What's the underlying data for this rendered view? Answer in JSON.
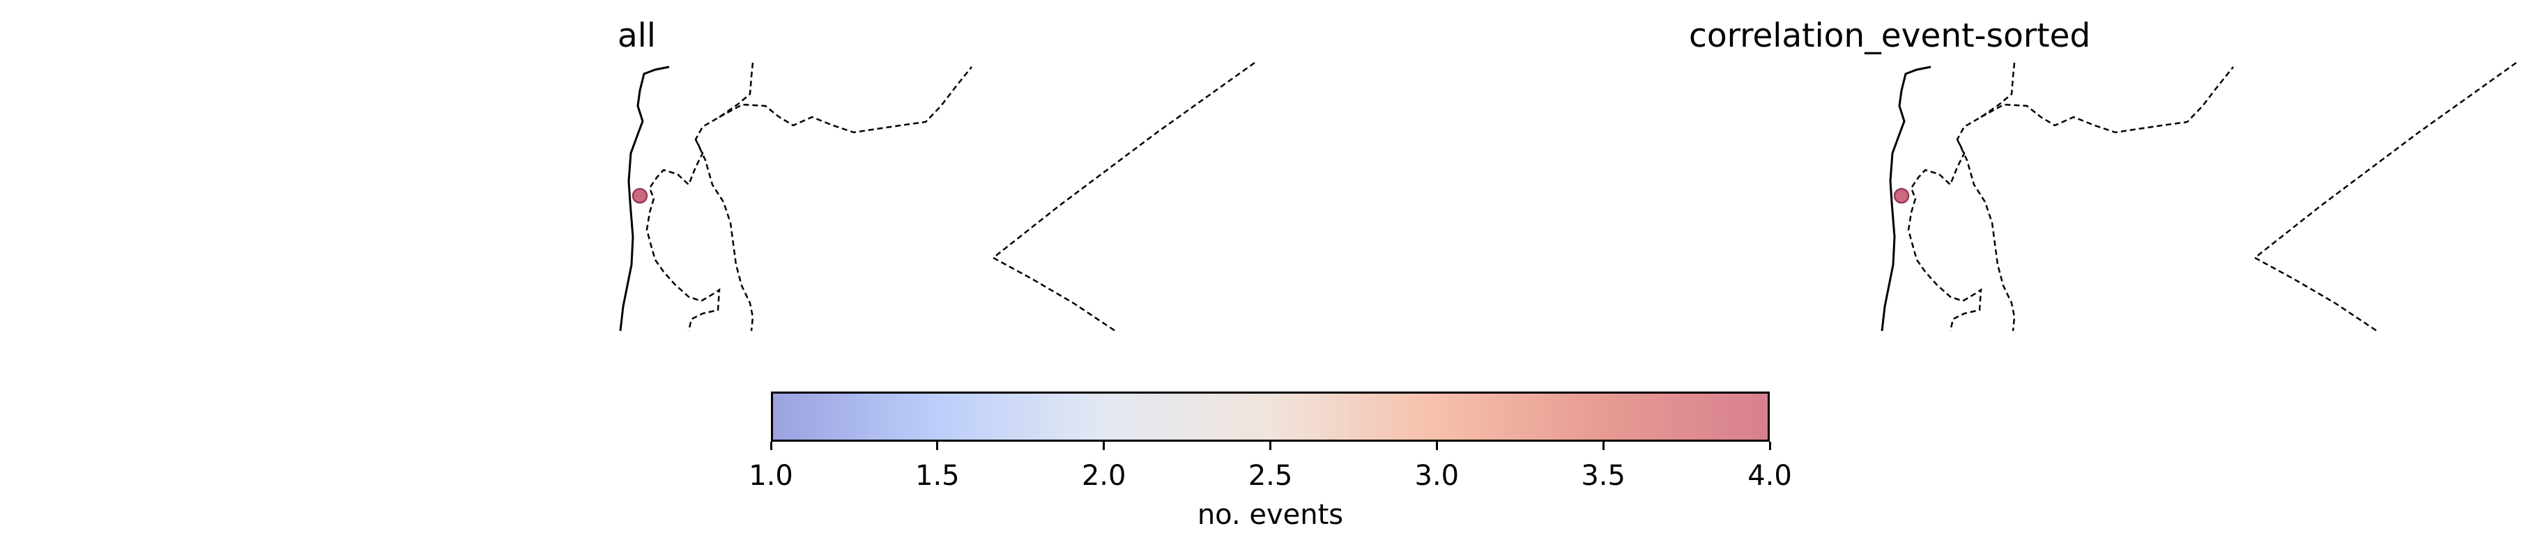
{
  "panels": [
    {
      "title": "all"
    },
    {
      "title": "correlation_event-sorted"
    }
  ],
  "legend": {
    "label": "no. events",
    "min": 1.0,
    "max": 4.0,
    "ticks": [
      "1.0",
      "1.5",
      "2.0",
      "2.5",
      "3.0",
      "3.5",
      "4.0"
    ],
    "colormap": "coolwarm",
    "gradient_colors": [
      "#9aa2df",
      "#bccefa",
      "#e3e8f2",
      "#f0e4dc",
      "#f6c0ab",
      "#e79b93",
      "#d8808e"
    ]
  },
  "colors": {
    "event_marker": "#c65a72",
    "event_marker_edge": "#8b2a40",
    "coastline": "#000000",
    "border": "#000000"
  },
  "chart_data": {
    "type": "scatter",
    "series": [
      {
        "values": [
          1
        ],
        "value_meaning": "no. events",
        "color_value": 4
      }
    ],
    "colorbar_range": [
      1.0,
      4.0
    ],
    "grid": false
  }
}
